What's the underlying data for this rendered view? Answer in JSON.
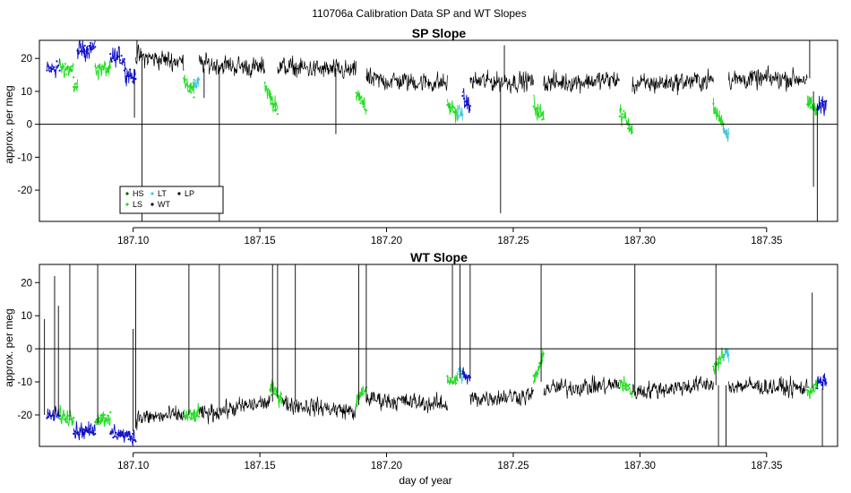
{
  "figure": {
    "suptitle": "110706a   Calibration Data SP and WT Slopes",
    "colors": {
      "WT": "#000000",
      "LP": "#000000",
      "HS": "#006400",
      "LS": "#22dd22",
      "LT": "#40c8d8",
      "HT": "#1010c8",
      "reference_line": "#000000"
    }
  },
  "chart_data": [
    {
      "type": "line",
      "title": "SP Slope",
      "xlabel": "",
      "ylabel": "approx. per meg",
      "xlim": [
        187.063,
        187.378
      ],
      "ylim": [
        -29.5,
        25.5
      ],
      "xticks": [
        187.1,
        187.15,
        187.2,
        187.25,
        187.3,
        187.35
      ],
      "xtick_labels": [
        "187.10",
        "187.15",
        "187.20",
        "187.25",
        "187.30",
        "187.35"
      ],
      "yticks": [
        -20,
        -10,
        0,
        10,
        20
      ],
      "ytick_labels": [
        "-20",
        "-10",
        "0",
        "10",
        "20"
      ],
      "hline": 0,
      "legend": {
        "position": "bottom-left",
        "entries": [
          {
            "label": "HS",
            "color": "#006400"
          },
          {
            "label": "LT",
            "color": "#40c8d8"
          },
          {
            "label": "LP",
            "color": "#000000"
          },
          {
            "label": "LS",
            "color": "#22dd22"
          },
          {
            "label": "WT",
            "color": "#000000"
          }
        ]
      },
      "noise": 2.4,
      "segments": [
        {
          "x0": 187.066,
          "x1": 187.071,
          "y0": 16.5,
          "y1": 17.5,
          "series": "HT"
        },
        {
          "x0": 187.071,
          "x1": 187.0765,
          "y0": 17.5,
          "y1": 16.0,
          "series": "LS"
        },
        {
          "x0": 187.0765,
          "x1": 187.078,
          "y0": 12.0,
          "y1": 11.0,
          "series": "LS"
        },
        {
          "x0": 187.078,
          "x1": 187.085,
          "y0": 22.5,
          "y1": 23.5,
          "series": "HT"
        },
        {
          "x0": 187.085,
          "x1": 187.091,
          "y0": 17.0,
          "y1": 16.5,
          "series": "LS"
        },
        {
          "x0": 187.091,
          "x1": 187.0965,
          "y0": 20.5,
          "y1": 20.0,
          "series": "HT"
        },
        {
          "x0": 187.0965,
          "x1": 187.101,
          "y0": 16.5,
          "y1": 14.0,
          "series": "HT"
        },
        {
          "x0": 187.101,
          "x1": 187.12,
          "y0": 20.5,
          "y1": 19.0,
          "series": "WT"
        },
        {
          "x0": 187.12,
          "x1": 187.124,
          "y0": 14.5,
          "y1": 9.0,
          "series": "LS"
        },
        {
          "x0": 187.124,
          "x1": 187.126,
          "y0": 12.0,
          "y1": 13.0,
          "series": "LT"
        },
        {
          "x0": 187.126,
          "x1": 187.152,
          "y0": 18.5,
          "y1": 17.0,
          "series": "WT"
        },
        {
          "x0": 187.152,
          "x1": 187.157,
          "y0": 12.0,
          "y1": 4.0,
          "series": "LS"
        },
        {
          "x0": 187.157,
          "x1": 187.188,
          "y0": 17.5,
          "y1": 16.0,
          "series": "WT"
        },
        {
          "x0": 187.188,
          "x1": 187.192,
          "y0": 10.0,
          "y1": 4.0,
          "series": "LS"
        },
        {
          "x0": 187.192,
          "x1": 187.224,
          "y0": 13.5,
          "y1": 12.5,
          "series": "WT"
        },
        {
          "x0": 187.224,
          "x1": 187.228,
          "y0": 6.0,
          "y1": 3.0,
          "series": "LS"
        },
        {
          "x0": 187.228,
          "x1": 187.23,
          "y0": 4.0,
          "y1": 3.0,
          "series": "LT"
        },
        {
          "x0": 187.23,
          "x1": 187.233,
          "y0": 7.0,
          "y1": 6.0,
          "series": "HT"
        },
        {
          "x0": 187.233,
          "x1": 187.258,
          "y0": 13.0,
          "y1": 13.0,
          "series": "WT"
        },
        {
          "x0": 187.258,
          "x1": 187.262,
          "y0": 6.0,
          "y1": 2.0,
          "series": "LS"
        },
        {
          "x0": 187.262,
          "x1": 187.292,
          "y0": 12.5,
          "y1": 13.5,
          "series": "WT"
        },
        {
          "x0": 187.292,
          "x1": 187.297,
          "y0": 4.0,
          "y1": -2.0,
          "series": "LS"
        },
        {
          "x0": 187.297,
          "x1": 187.329,
          "y0": 12.0,
          "y1": 13.5,
          "series": "WT"
        },
        {
          "x0": 187.329,
          "x1": 187.333,
          "y0": 5.0,
          "y1": 0.0,
          "series": "LS"
        },
        {
          "x0": 187.333,
          "x1": 187.335,
          "y0": -2.0,
          "y1": -2.0,
          "series": "LT"
        },
        {
          "x0": 187.335,
          "x1": 187.366,
          "y0": 13.5,
          "y1": 14.0,
          "series": "WT"
        },
        {
          "x0": 187.366,
          "x1": 187.37,
          "y0": 6.0,
          "y1": 4.0,
          "series": "LS"
        },
        {
          "x0": 187.37,
          "x1": 187.3735,
          "y0": 5.5,
          "y1": 7.0,
          "series": "HT"
        }
      ],
      "spikes": [
        {
          "x": 187.1005,
          "y0": 13,
          "y1": 2
        },
        {
          "x": 187.1015,
          "y0": 20,
          "y1": 25.5
        },
        {
          "x": 187.1035,
          "y0": 20,
          "y1": -29.5
        },
        {
          "x": 187.134,
          "y0": 18,
          "y1": -29.5
        },
        {
          "x": 187.128,
          "y0": 17,
          "y1": 8
        },
        {
          "x": 187.18,
          "y0": 17,
          "y1": -3
        },
        {
          "x": 187.245,
          "y0": 13,
          "y1": -27
        },
        {
          "x": 187.2465,
          "y0": 13,
          "y1": 24
        },
        {
          "x": 187.367,
          "y0": 14,
          "y1": 25.5
        },
        {
          "x": 187.3685,
          "y0": 10,
          "y1": -19
        },
        {
          "x": 187.37,
          "y0": 6,
          "y1": -29.5
        }
      ]
    },
    {
      "type": "line",
      "title": "WT Slope",
      "xlabel": "day of year",
      "ylabel": "approx. per meg",
      "xlim": [
        187.063,
        187.378
      ],
      "ylim": [
        -29.5,
        25.5
      ],
      "xticks": [
        187.1,
        187.15,
        187.2,
        187.25,
        187.3,
        187.35
      ],
      "xtick_labels": [
        "187.10",
        "187.15",
        "187.20",
        "187.25",
        "187.30",
        "187.35"
      ],
      "yticks": [
        -20,
        -10,
        0,
        10,
        20
      ],
      "ytick_labels": [
        "-20",
        "-10",
        "0",
        "10",
        "20"
      ],
      "hline": 0,
      "noise": 2.1,
      "segments": [
        {
          "x0": 187.066,
          "x1": 187.071,
          "y0": -20.5,
          "y1": -20.0,
          "series": "HT"
        },
        {
          "x0": 187.071,
          "x1": 187.0765,
          "y0": -20.0,
          "y1": -21.0,
          "series": "LS"
        },
        {
          "x0": 187.0765,
          "x1": 187.085,
          "y0": -24.5,
          "y1": -25.0,
          "series": "HT"
        },
        {
          "x0": 187.085,
          "x1": 187.091,
          "y0": -21.0,
          "y1": -21.0,
          "series": "LS"
        },
        {
          "x0": 187.091,
          "x1": 187.101,
          "y0": -25.0,
          "y1": -27.0,
          "series": "HT"
        },
        {
          "x0": 187.101,
          "x1": 187.12,
          "y0": -21.0,
          "y1": -20.0,
          "series": "WT"
        },
        {
          "x0": 187.12,
          "x1": 187.126,
          "y0": -20.5,
          "y1": -20.0,
          "series": "LS"
        },
        {
          "x0": 187.126,
          "x1": 187.154,
          "y0": -20.0,
          "y1": -16.0,
          "series": "WT"
        },
        {
          "x0": 187.154,
          "x1": 187.159,
          "y0": -12.0,
          "y1": -15.0,
          "series": "LS"
        },
        {
          "x0": 187.159,
          "x1": 187.188,
          "y0": -16.5,
          "y1": -19.0,
          "series": "WT"
        },
        {
          "x0": 187.188,
          "x1": 187.192,
          "y0": -16.0,
          "y1": -12.0,
          "series": "LS"
        },
        {
          "x0": 187.192,
          "x1": 187.224,
          "y0": -15.0,
          "y1": -17.0,
          "series": "WT"
        },
        {
          "x0": 187.224,
          "x1": 187.228,
          "y0": -9.0,
          "y1": -10.0,
          "series": "LS"
        },
        {
          "x0": 187.228,
          "x1": 187.23,
          "y0": -7.0,
          "y1": -7.5,
          "series": "LT"
        },
        {
          "x0": 187.23,
          "x1": 187.233,
          "y0": -8.0,
          "y1": -9.0,
          "series": "HT"
        },
        {
          "x0": 187.233,
          "x1": 187.258,
          "y0": -15.0,
          "y1": -14.0,
          "series": "WT"
        },
        {
          "x0": 187.258,
          "x1": 187.262,
          "y0": -10.0,
          "y1": -2.0,
          "series": "LS"
        },
        {
          "x0": 187.262,
          "x1": 187.292,
          "y0": -12.0,
          "y1": -11.0,
          "series": "WT"
        },
        {
          "x0": 187.292,
          "x1": 187.297,
          "y0": -10.0,
          "y1": -13.0,
          "series": "LS"
        },
        {
          "x0": 187.297,
          "x1": 187.329,
          "y0": -13.0,
          "y1": -10.5,
          "series": "WT"
        },
        {
          "x0": 187.329,
          "x1": 187.333,
          "y0": -6.0,
          "y1": -2.0,
          "series": "LS"
        },
        {
          "x0": 187.333,
          "x1": 187.335,
          "y0": -2.0,
          "y1": -2.0,
          "series": "LT"
        },
        {
          "x0": 187.335,
          "x1": 187.366,
          "y0": -11.0,
          "y1": -12.0,
          "series": "WT"
        },
        {
          "x0": 187.366,
          "x1": 187.37,
          "y0": -13.0,
          "y1": -11.0,
          "series": "LS"
        },
        {
          "x0": 187.37,
          "x1": 187.3735,
          "y0": -10.5,
          "y1": -10.0,
          "series": "HT"
        }
      ],
      "spikes": [
        {
          "x": 187.065,
          "y0": -20,
          "y1": 9
        },
        {
          "x": 187.069,
          "y0": -20,
          "y1": 22
        },
        {
          "x": 187.0705,
          "y0": -20,
          "y1": 13
        },
        {
          "x": 187.075,
          "y0": -21,
          "y1": 25.5
        },
        {
          "x": 187.086,
          "y0": -23,
          "y1": 25.5
        },
        {
          "x": 187.1,
          "y0": -25,
          "y1": 6
        },
        {
          "x": 187.101,
          "y0": -24,
          "y1": 25.5
        },
        {
          "x": 187.122,
          "y0": -20,
          "y1": 25.5
        },
        {
          "x": 187.134,
          "y0": -19,
          "y1": 25.5
        },
        {
          "x": 187.155,
          "y0": -16,
          "y1": 25.5
        },
        {
          "x": 187.157,
          "y0": -15,
          "y1": 25.5
        },
        {
          "x": 187.164,
          "y0": -16,
          "y1": 25.5
        },
        {
          "x": 187.189,
          "y0": -17,
          "y1": 25.5
        },
        {
          "x": 187.192,
          "y0": -16,
          "y1": 25.5
        },
        {
          "x": 187.226,
          "y0": -9,
          "y1": 25.5
        },
        {
          "x": 187.229,
          "y0": -9,
          "y1": 25.5
        },
        {
          "x": 187.233,
          "y0": -9,
          "y1": 25.5
        },
        {
          "x": 187.261,
          "y0": -10,
          "y1": 25.5
        },
        {
          "x": 187.298,
          "y0": -13,
          "y1": 25.5
        },
        {
          "x": 187.33,
          "y0": -11,
          "y1": 25.5
        },
        {
          "x": 187.334,
          "y0": -11,
          "y1": -29.5
        },
        {
          "x": 187.331,
          "y0": -11,
          "y1": -29.5
        },
        {
          "x": 187.368,
          "y0": -12,
          "y1": 17
        },
        {
          "x": 187.372,
          "y0": -12,
          "y1": -29.5
        }
      ]
    }
  ]
}
